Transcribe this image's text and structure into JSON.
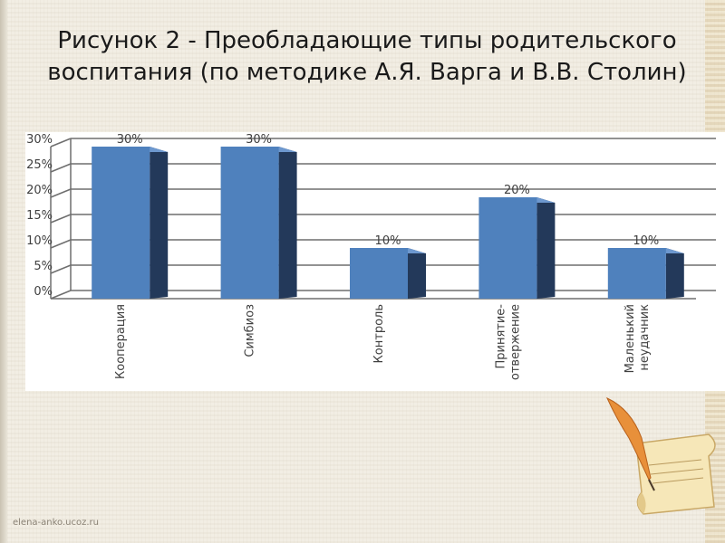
{
  "slide": {
    "title": "Рисунок 2 - Преобладающие типы родительского воспитания (по методике А.Я. Варга и В.В. Столин)",
    "footer_url": "elena-anko.ucoz.ru"
  },
  "chart_data": {
    "type": "bar",
    "title": "",
    "xlabel": "",
    "ylabel": "",
    "ylim": [
      0,
      30
    ],
    "y_ticks": [
      "0%",
      "5%",
      "10%",
      "15%",
      "20%",
      "25%",
      "30%"
    ],
    "categories": [
      [
        "Кооперация"
      ],
      [
        "Симбиоз"
      ],
      [
        "Контроль"
      ],
      [
        "Принятие-",
        "отвержение"
      ],
      [
        "Маленький",
        "неудачник"
      ]
    ],
    "values": [
      30,
      30,
      10,
      20,
      10
    ],
    "data_labels": [
      "30%",
      "30%",
      "10%",
      "20%",
      "10%"
    ],
    "grid": true,
    "legend": "none",
    "colors": {
      "bar_front": "#4f81bd",
      "bar_side": "#23395a",
      "gridline": "#6e6e6e",
      "text": "#404040"
    }
  }
}
